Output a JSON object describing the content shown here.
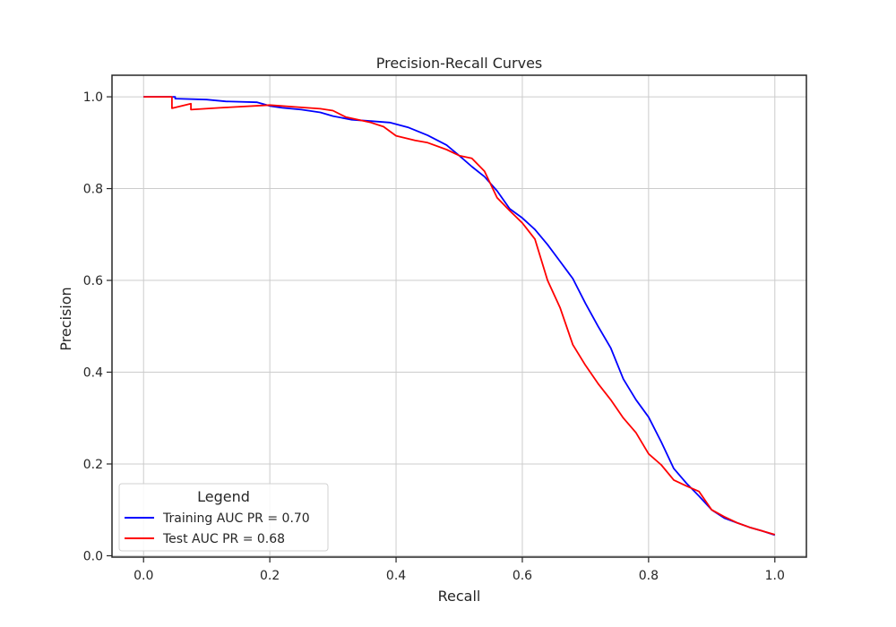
{
  "chart_data": {
    "type": "line",
    "title": "Precision-Recall Curves",
    "xlabel": "Recall",
    "ylabel": "Precision",
    "xlim": [
      -0.05,
      1.05
    ],
    "ylim": [
      -0.003,
      1.047
    ],
    "xticks": [
      "0.0",
      "0.2",
      "0.4",
      "0.6",
      "0.8",
      "1.0"
    ],
    "yticks": [
      "0.0",
      "0.2",
      "0.4",
      "0.6",
      "0.8",
      "1.0"
    ],
    "grid": true,
    "legend": {
      "title": "Legend",
      "placement": "lower-left"
    },
    "series": [
      {
        "name": "Training AUC PR = 0.70",
        "color": "#0000ff",
        "x": [
          0.0,
          0.05,
          0.05,
          0.1,
          0.13,
          0.18,
          0.19,
          0.2,
          0.22,
          0.25,
          0.28,
          0.3,
          0.33,
          0.36,
          0.39,
          0.42,
          0.45,
          0.48,
          0.5,
          0.52,
          0.54,
          0.56,
          0.58,
          0.6,
          0.62,
          0.64,
          0.66,
          0.68,
          0.7,
          0.72,
          0.74,
          0.76,
          0.78,
          0.8,
          0.82,
          0.84,
          0.86,
          0.88,
          0.9,
          0.92,
          0.94,
          0.96,
          0.98,
          1.0
        ],
        "y": [
          1.0,
          1.0,
          0.996,
          0.994,
          0.99,
          0.988,
          0.984,
          0.98,
          0.976,
          0.972,
          0.966,
          0.958,
          0.95,
          0.947,
          0.944,
          0.933,
          0.916,
          0.895,
          0.872,
          0.848,
          0.826,
          0.795,
          0.756,
          0.736,
          0.711,
          0.678,
          0.641,
          0.604,
          0.55,
          0.5,
          0.453,
          0.385,
          0.34,
          0.302,
          0.248,
          0.19,
          0.158,
          0.13,
          0.1,
          0.082,
          0.072,
          0.062,
          0.054,
          0.045
        ]
      },
      {
        "name": "Test AUC PR = 0.68",
        "color": "#ff0000",
        "x": [
          0.0,
          0.045,
          0.045,
          0.075,
          0.075,
          0.12,
          0.2,
          0.24,
          0.28,
          0.3,
          0.32,
          0.36,
          0.38,
          0.4,
          0.43,
          0.45,
          0.48,
          0.5,
          0.52,
          0.54,
          0.56,
          0.58,
          0.6,
          0.62,
          0.64,
          0.66,
          0.68,
          0.7,
          0.72,
          0.74,
          0.76,
          0.78,
          0.8,
          0.82,
          0.84,
          0.86,
          0.88,
          0.9,
          0.92,
          0.94,
          0.96,
          0.98,
          1.0
        ],
        "y": [
          1.0,
          1.0,
          0.975,
          0.985,
          0.972,
          0.976,
          0.982,
          0.978,
          0.974,
          0.97,
          0.956,
          0.944,
          0.935,
          0.915,
          0.905,
          0.9,
          0.885,
          0.872,
          0.866,
          0.838,
          0.78,
          0.752,
          0.725,
          0.69,
          0.6,
          0.54,
          0.46,
          0.415,
          0.375,
          0.34,
          0.3,
          0.268,
          0.222,
          0.198,
          0.165,
          0.152,
          0.14,
          0.1,
          0.085,
          0.072,
          0.062,
          0.054,
          0.046
        ]
      }
    ]
  }
}
